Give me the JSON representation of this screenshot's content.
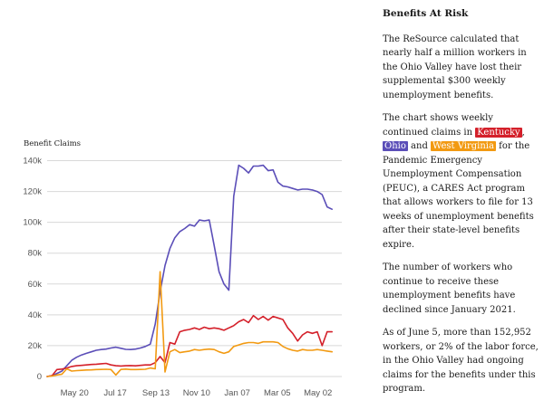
{
  "chart_data": {
    "type": "line",
    "ylabel": "Benefit Claims",
    "ylim": [
      0,
      145000
    ],
    "yticks": [
      0,
      20000,
      40000,
      60000,
      80000,
      100000,
      120000,
      140000
    ],
    "ytick_labels": [
      "0",
      "20k",
      "40k",
      "60k",
      "80k",
      "100k",
      "120k",
      "140k"
    ],
    "x_start": "2020-04-11",
    "x_end": "2021-06-05",
    "xticks": [
      "2020-05-20",
      "2020-07-17",
      "2020-09-13",
      "2020-11-10",
      "2021-01-07",
      "2021-03-05",
      "2021-05-02"
    ],
    "xtick_labels": [
      "May 20",
      "Jul 17",
      "Sep 13",
      "Nov 10",
      "Jan 07",
      "Mar 05",
      "May 02"
    ],
    "grid": true,
    "series": [
      {
        "name": "Ohio",
        "color": "#5b4eb8",
        "points": [
          [
            "2020-04-11",
            0
          ],
          [
            "2020-04-18",
            500
          ],
          [
            "2020-04-25",
            2000
          ],
          [
            "2020-05-02",
            3500
          ],
          [
            "2020-05-09",
            7000
          ],
          [
            "2020-05-16",
            10500
          ],
          [
            "2020-05-23",
            12500
          ],
          [
            "2020-05-30",
            14000
          ],
          [
            "2020-06-06",
            15000
          ],
          [
            "2020-06-13",
            16000
          ],
          [
            "2020-06-20",
            17000
          ],
          [
            "2020-06-27",
            17500
          ],
          [
            "2020-07-04",
            17800
          ],
          [
            "2020-07-11",
            18500
          ],
          [
            "2020-07-18",
            19000
          ],
          [
            "2020-07-25",
            18300
          ],
          [
            "2020-08-01",
            17600
          ],
          [
            "2020-08-08",
            17500
          ],
          [
            "2020-08-15",
            17800
          ],
          [
            "2020-08-22",
            18500
          ],
          [
            "2020-08-29",
            19500
          ],
          [
            "2020-09-05",
            21000
          ],
          [
            "2020-09-12",
            34000
          ],
          [
            "2020-09-19",
            55000
          ],
          [
            "2020-09-26",
            72000
          ],
          [
            "2020-10-03",
            83000
          ],
          [
            "2020-10-10",
            90000
          ],
          [
            "2020-10-17",
            94000
          ],
          [
            "2020-10-24",
            96000
          ],
          [
            "2020-10-31",
            98500
          ],
          [
            "2020-11-07",
            97500
          ],
          [
            "2020-11-14",
            101500
          ],
          [
            "2020-11-21",
            101000
          ],
          [
            "2020-11-28",
            101500
          ],
          [
            "2020-12-05",
            85000
          ],
          [
            "2020-12-12",
            68000
          ],
          [
            "2020-12-19",
            60000
          ],
          [
            "2020-12-26",
            56000
          ],
          [
            "2021-01-02",
            117000
          ],
          [
            "2021-01-09",
            137000
          ],
          [
            "2021-01-16",
            135000
          ],
          [
            "2021-01-23",
            132000
          ],
          [
            "2021-01-30",
            136500
          ],
          [
            "2021-02-06",
            136500
          ],
          [
            "2021-02-13",
            137000
          ],
          [
            "2021-02-20",
            133500
          ],
          [
            "2021-02-27",
            134000
          ],
          [
            "2021-03-06",
            126000
          ],
          [
            "2021-03-13",
            123500
          ],
          [
            "2021-03-20",
            123000
          ],
          [
            "2021-03-27",
            122000
          ],
          [
            "2021-04-03",
            121000
          ],
          [
            "2021-04-10",
            121500
          ],
          [
            "2021-04-17",
            121500
          ],
          [
            "2021-04-24",
            121000
          ],
          [
            "2021-05-01",
            120000
          ],
          [
            "2021-05-08",
            118000
          ],
          [
            "2021-05-15",
            110000
          ],
          [
            "2021-05-22",
            108500
          ]
        ]
      },
      {
        "name": "Kentucky",
        "color": "#d4202a",
        "points": [
          [
            "2020-04-11",
            0
          ],
          [
            "2020-04-18",
            500
          ],
          [
            "2020-04-25",
            4500
          ],
          [
            "2020-05-02",
            4800
          ],
          [
            "2020-05-09",
            5500
          ],
          [
            "2020-05-16",
            6500
          ],
          [
            "2020-05-23",
            7000
          ],
          [
            "2020-05-30",
            7200
          ],
          [
            "2020-06-06",
            7500
          ],
          [
            "2020-06-13",
            7800
          ],
          [
            "2020-06-20",
            8000
          ],
          [
            "2020-06-27",
            8300
          ],
          [
            "2020-07-04",
            8500
          ],
          [
            "2020-07-11",
            7500
          ],
          [
            "2020-07-18",
            7000
          ],
          [
            "2020-07-25",
            6800
          ],
          [
            "2020-08-01",
            7000
          ],
          [
            "2020-08-08",
            7100
          ],
          [
            "2020-08-15",
            6900
          ],
          [
            "2020-08-22",
            7200
          ],
          [
            "2020-08-29",
            7500
          ],
          [
            "2020-09-05",
            7500
          ],
          [
            "2020-09-12",
            9000
          ],
          [
            "2020-09-19",
            13000
          ],
          [
            "2020-09-26",
            9000
          ],
          [
            "2020-10-03",
            22000
          ],
          [
            "2020-10-10",
            21000
          ],
          [
            "2020-10-17",
            29000
          ],
          [
            "2020-10-24",
            30000
          ],
          [
            "2020-10-31",
            30500
          ],
          [
            "2020-11-07",
            31500
          ],
          [
            "2020-11-14",
            30500
          ],
          [
            "2020-11-21",
            32000
          ],
          [
            "2020-11-28",
            31000
          ],
          [
            "2020-12-05",
            31500
          ],
          [
            "2020-12-12",
            31000
          ],
          [
            "2020-12-19",
            30000
          ],
          [
            "2020-12-26",
            31500
          ],
          [
            "2021-01-02",
            33000
          ],
          [
            "2021-01-09",
            35500
          ],
          [
            "2021-01-16",
            37000
          ],
          [
            "2021-01-23",
            35000
          ],
          [
            "2021-01-30",
            39500
          ],
          [
            "2021-02-06",
            37000
          ],
          [
            "2021-02-13",
            39000
          ],
          [
            "2021-02-20",
            36500
          ],
          [
            "2021-02-27",
            39000
          ],
          [
            "2021-03-06",
            38000
          ],
          [
            "2021-03-13",
            37000
          ],
          [
            "2021-03-20",
            31500
          ],
          [
            "2021-03-27",
            28000
          ],
          [
            "2021-04-03",
            23000
          ],
          [
            "2021-04-10",
            27000
          ],
          [
            "2021-04-17",
            29000
          ],
          [
            "2021-04-24",
            28000
          ],
          [
            "2021-05-01",
            29000
          ],
          [
            "2021-05-08",
            20000
          ],
          [
            "2021-05-15",
            29000
          ],
          [
            "2021-05-22",
            29000
          ]
        ]
      },
      {
        "name": "West Virginia",
        "color": "#f29a12",
        "points": [
          [
            "2020-04-11",
            0
          ],
          [
            "2020-04-18",
            300
          ],
          [
            "2020-04-25",
            1000
          ],
          [
            "2020-05-02",
            1500
          ],
          [
            "2020-05-09",
            5000
          ],
          [
            "2020-05-16",
            3500
          ],
          [
            "2020-05-23",
            3800
          ],
          [
            "2020-05-30",
            4000
          ],
          [
            "2020-06-06",
            4200
          ],
          [
            "2020-06-13",
            4300
          ],
          [
            "2020-06-20",
            4500
          ],
          [
            "2020-06-27",
            4600
          ],
          [
            "2020-07-04",
            4700
          ],
          [
            "2020-07-11",
            4500
          ],
          [
            "2020-07-18",
            1000
          ],
          [
            "2020-07-25",
            4600
          ],
          [
            "2020-08-01",
            4800
          ],
          [
            "2020-08-08",
            4500
          ],
          [
            "2020-08-15",
            4500
          ],
          [
            "2020-08-22",
            4600
          ],
          [
            "2020-08-29",
            4700
          ],
          [
            "2020-09-05",
            5500
          ],
          [
            "2020-09-12",
            5000
          ],
          [
            "2020-09-19",
            68000
          ],
          [
            "2020-09-26",
            3000
          ],
          [
            "2020-10-03",
            16000
          ],
          [
            "2020-10-10",
            17500
          ],
          [
            "2020-10-17",
            15500
          ],
          [
            "2020-10-24",
            16000
          ],
          [
            "2020-10-31",
            16500
          ],
          [
            "2020-11-07",
            17500
          ],
          [
            "2020-11-14",
            17000
          ],
          [
            "2020-11-21",
            17500
          ],
          [
            "2020-11-28",
            17800
          ],
          [
            "2020-12-05",
            17500
          ],
          [
            "2020-12-12",
            16000
          ],
          [
            "2020-12-19",
            15000
          ],
          [
            "2020-12-26",
            16000
          ],
          [
            "2021-01-02",
            19500
          ],
          [
            "2021-01-09",
            20500
          ],
          [
            "2021-01-16",
            21500
          ],
          [
            "2021-01-23",
            22000
          ],
          [
            "2021-01-30",
            22000
          ],
          [
            "2021-02-06",
            21500
          ],
          [
            "2021-02-13",
            22500
          ],
          [
            "2021-02-20",
            22500
          ],
          [
            "2021-02-27",
            22500
          ],
          [
            "2021-03-06",
            22000
          ],
          [
            "2021-03-13",
            19500
          ],
          [
            "2021-03-20",
            18000
          ],
          [
            "2021-03-27",
            17000
          ],
          [
            "2021-04-03",
            16500
          ],
          [
            "2021-04-10",
            17500
          ],
          [
            "2021-04-17",
            17000
          ],
          [
            "2021-04-24",
            17000
          ],
          [
            "2021-05-01",
            17500
          ],
          [
            "2021-05-08",
            17000
          ],
          [
            "2021-05-15",
            16500
          ],
          [
            "2021-05-22",
            16000
          ]
        ]
      }
    ]
  },
  "sidebar": {
    "title": "Benefits At Risk",
    "p1": "The ReSource calculated that nearly half a million workers in the Ohio Valley have lost their supplemental $300 weekly unemployment benefits.",
    "p2_before": "The chart shows weekly continued claims in ",
    "p2_sep1": ", ",
    "p2_sep2": " and ",
    "p2_after": " for the Pandemic Emergency Unemployment Compensation (PEUC), a CARES Act program that allows workers to file for 13 weeks of unemployment benefits after their state-level benefits expire.",
    "tag_kentucky": "Kentucky",
    "tag_ohio": "Ohio",
    "tag_wv": "West Virginia",
    "p3": "The number of workers who continue to receive these unemployment benefits have declined since January 2021.",
    "p4": "As of June 5, more than 152,952 workers, or 2% of the labor force, in the Ohio Valley had ongoing claims for the benefits under this program."
  }
}
